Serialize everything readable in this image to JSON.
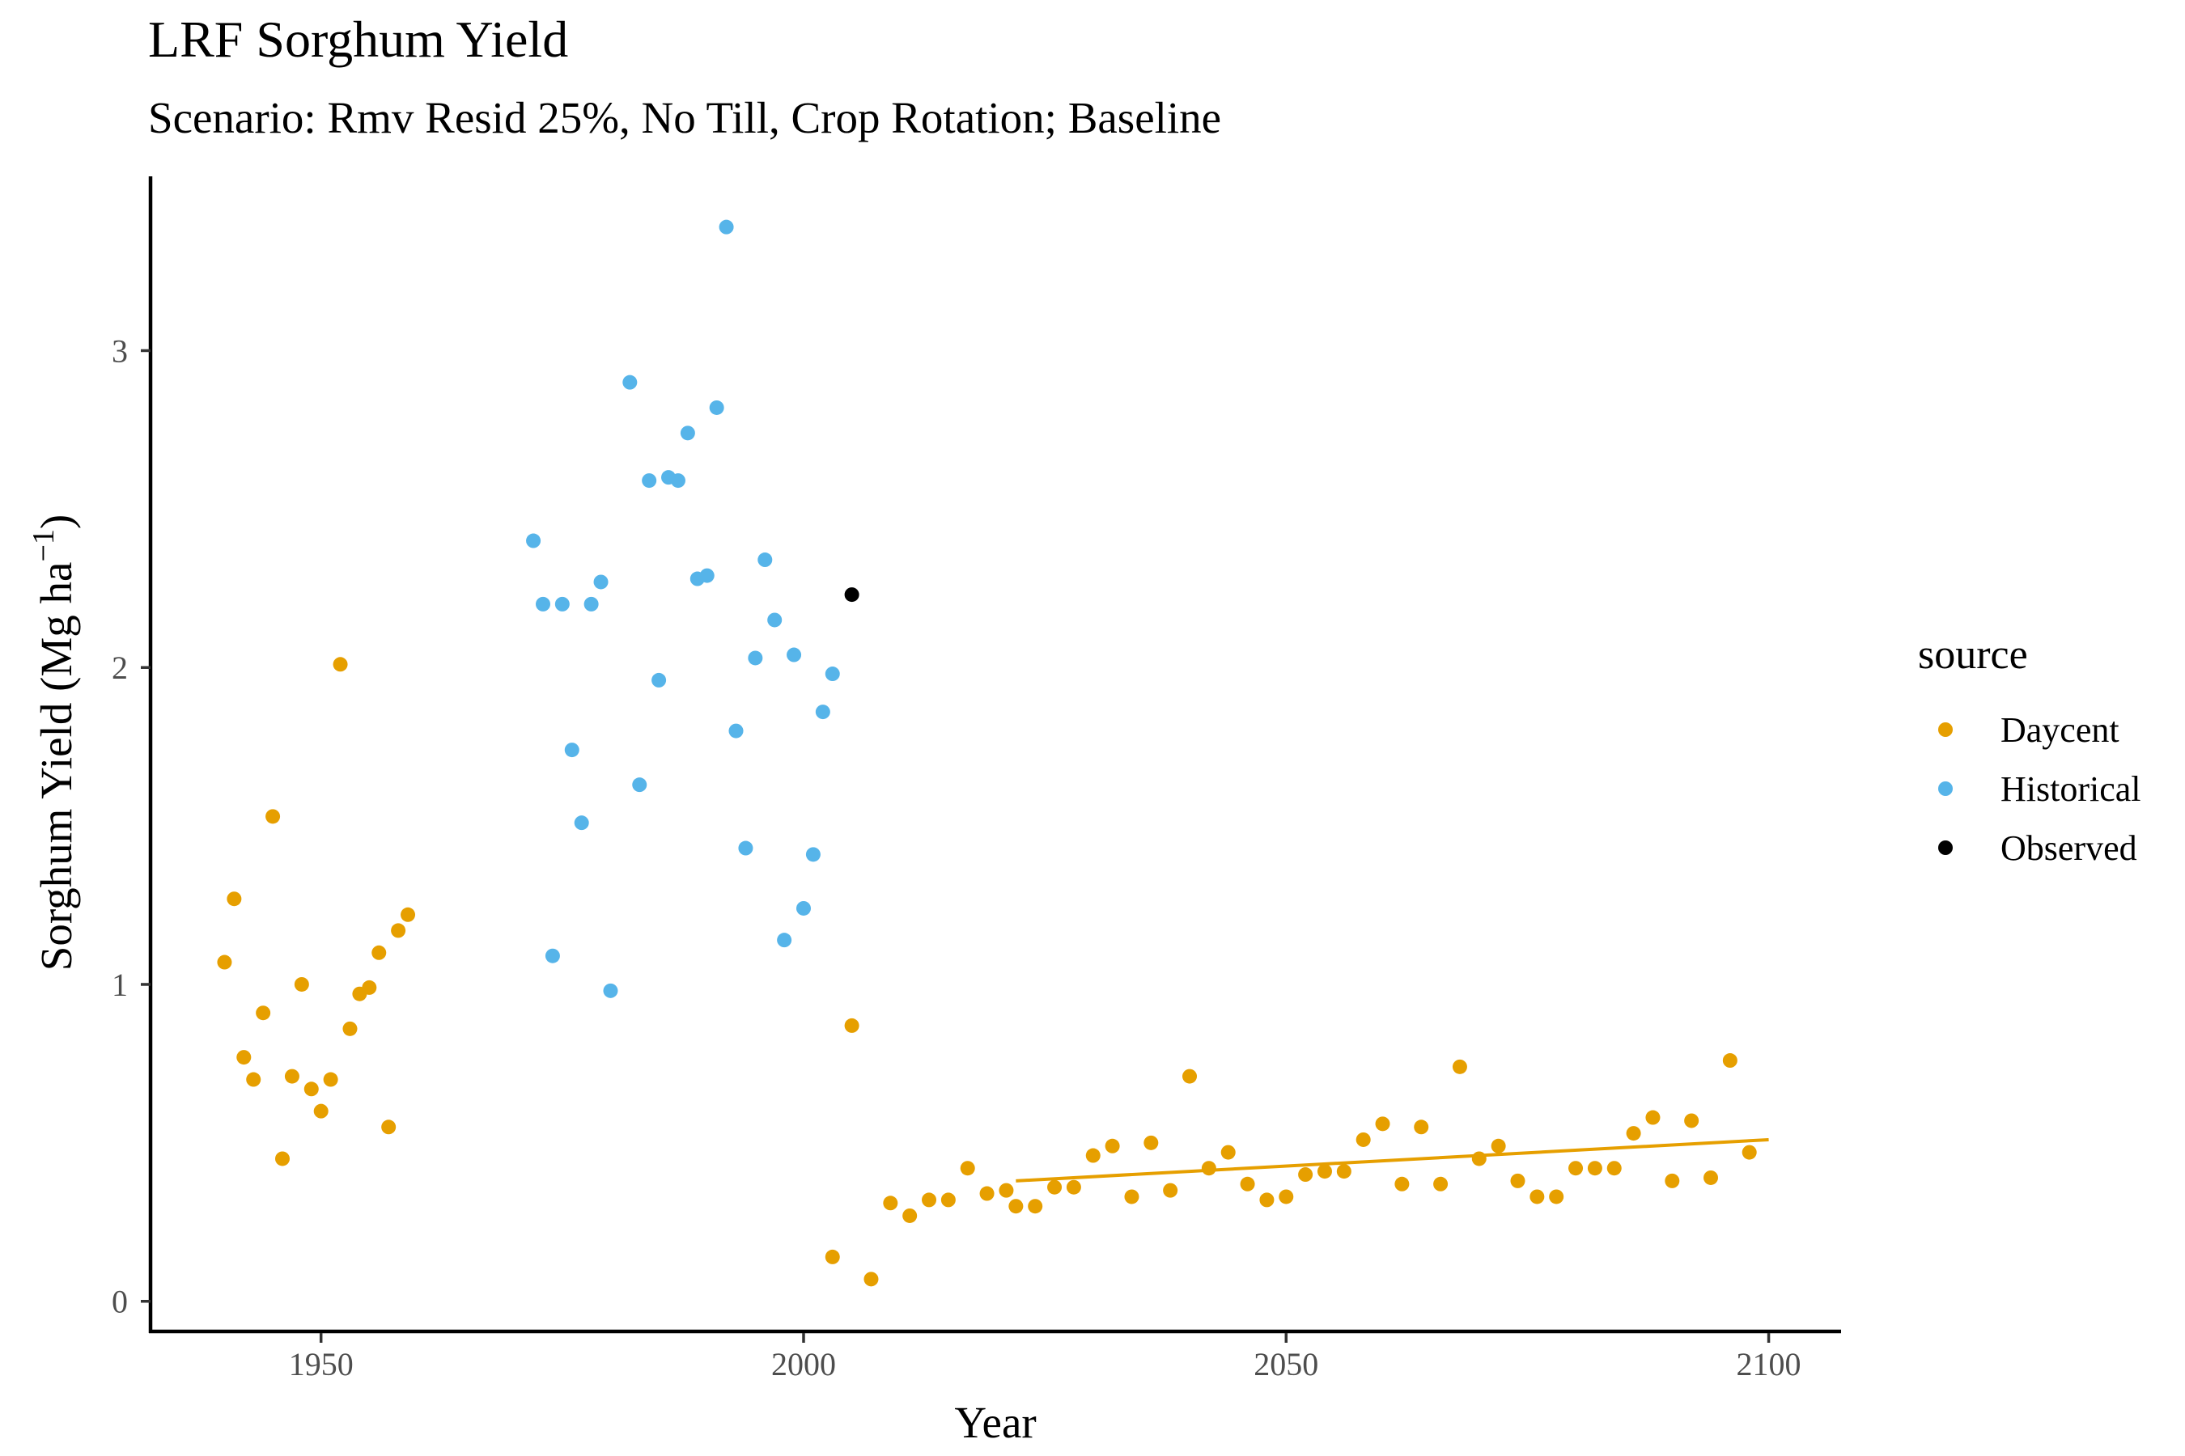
{
  "title": "LRF Sorghum Yield",
  "subtitle": "Scenario: Rmv Resid 25%, No Till, Crop Rotation; Baseline",
  "chart_data": {
    "type": "scatter",
    "xlabel": "Year",
    "ylabel": "Sorghum Yield (Mg ha",
    "ylabel_unit_sup": "−1",
    "ylabel_close": ")",
    "xlim": [
      1932.5,
      2107.5
    ],
    "ylim": [
      -0.09,
      3.55
    ],
    "xticks": [
      1950,
      2000,
      2050,
      2100
    ],
    "yticks": [
      0,
      1,
      2,
      3
    ],
    "grid": false,
    "legend_title": "source",
    "legend_position": "right",
    "series": [
      {
        "name": "Daycent",
        "color": "#E69F00",
        "x": [
          1940,
          1941,
          1942,
          1943,
          1944,
          1945,
          1946,
          1947,
          1948,
          1949,
          1950,
          1951,
          1952,
          1953,
          1954,
          1955,
          1956,
          1957,
          1958,
          1959,
          2003,
          2005,
          2007,
          2009,
          2011,
          2013,
          2015,
          2017,
          2019,
          2021,
          2022,
          2024,
          2026,
          2028,
          2030,
          2032,
          2034,
          2036,
          2038,
          2040,
          2042,
          2044,
          2046,
          2048,
          2050,
          2052,
          2054,
          2056,
          2058,
          2060,
          2062,
          2064,
          2066,
          2068,
          2070,
          2072,
          2074,
          2076,
          2078,
          2080,
          2082,
          2084,
          2086,
          2088,
          2090,
          2092,
          2094,
          2096,
          2098
        ],
        "y": [
          1.07,
          1.27,
          0.77,
          0.7,
          0.91,
          1.53,
          0.45,
          0.71,
          1.0,
          0.67,
          0.6,
          0.7,
          2.01,
          0.86,
          0.97,
          0.99,
          1.1,
          0.55,
          1.17,
          1.22,
          0.14,
          0.87,
          0.07,
          0.31,
          0.27,
          0.32,
          0.32,
          0.42,
          0.34,
          0.35,
          0.3,
          0.3,
          0.36,
          0.36,
          0.46,
          0.49,
          0.33,
          0.5,
          0.35,
          0.71,
          0.42,
          0.47,
          0.37,
          0.32,
          0.33,
          0.4,
          0.41,
          0.41,
          0.51,
          0.56,
          0.37,
          0.55,
          0.37,
          0.74,
          0.45,
          0.49,
          0.38,
          0.33,
          0.33,
          0.42,
          0.42,
          0.42,
          0.53,
          0.58,
          0.38,
          0.57,
          0.39,
          0.76,
          0.47
        ]
      },
      {
        "name": "Historical",
        "color": "#56B4E9",
        "x": [
          1972,
          1973,
          1974,
          1975,
          1976,
          1977,
          1978,
          1979,
          1980,
          1982,
          1983,
          1984,
          1985,
          1986,
          1987,
          1988,
          1989,
          1990,
          1991,
          1992,
          1993,
          1994,
          1995,
          1996,
          1997,
          1998,
          1999,
          2000,
          2001,
          2002,
          2003
        ],
        "y": [
          2.4,
          2.2,
          1.09,
          2.2,
          1.74,
          1.51,
          2.2,
          2.27,
          0.98,
          2.9,
          1.63,
          2.59,
          1.96,
          2.6,
          2.59,
          2.74,
          2.28,
          2.29,
          2.82,
          3.39,
          1.8,
          1.43,
          2.03,
          2.34,
          2.15,
          1.14,
          2.04,
          1.24,
          1.41,
          1.86,
          1.98
        ]
      },
      {
        "name": "Observed",
        "color": "#000000",
        "x": [
          2005
        ],
        "y": [
          2.23
        ]
      }
    ],
    "trend_line": {
      "series": "Daycent",
      "color": "#E69F00",
      "x": [
        2022,
        2100
      ],
      "y": [
        0.38,
        0.51
      ]
    }
  }
}
